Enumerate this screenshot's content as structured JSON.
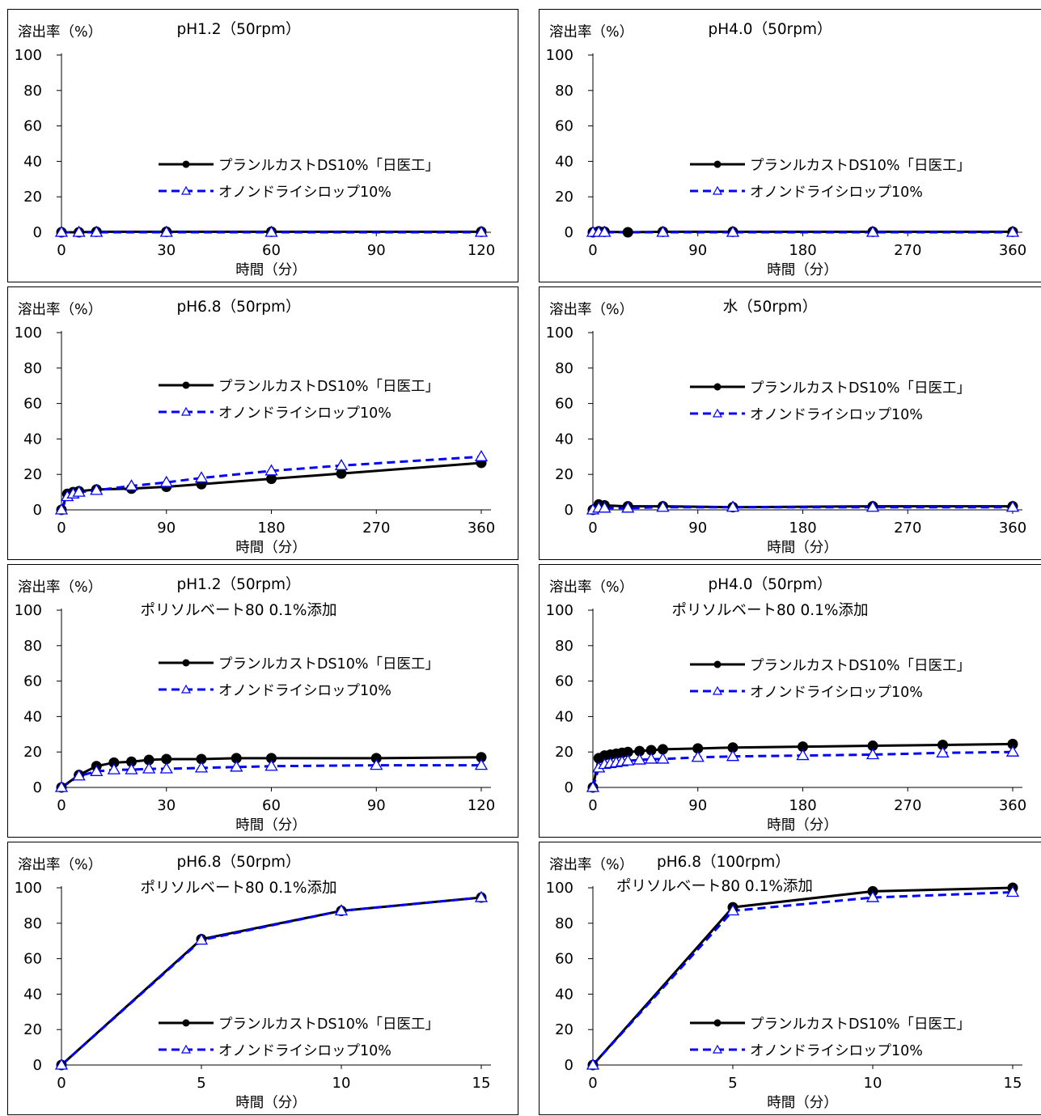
{
  "legend": {
    "series1": "プランルカストDS10%「日医工」",
    "series2": "オノンドライシロップ10%"
  },
  "colors": {
    "series1": "#000000",
    "series2": "#0000ff",
    "marker2_stroke": "#0000ff",
    "marker2_fill": "#ffffff"
  },
  "chart_data": [
    {
      "type": "line",
      "title": "pH1.2（50rpm）",
      "subtitle": "",
      "ylabel": "溶出率（%）",
      "xlabel": "時間（分）",
      "xlim": [
        0,
        120
      ],
      "xticks": [
        0,
        30,
        60,
        90,
        120
      ],
      "ylim": [
        0,
        100
      ],
      "yticks": [
        0,
        20,
        40,
        60,
        80,
        100
      ],
      "legend_position": "middle-right",
      "series": [
        {
          "name": "プランルカストDS10%「日医工」",
          "x": [
            0,
            5,
            10,
            30,
            60,
            120
          ],
          "values": [
            0,
            0,
            0.3,
            0.3,
            0.3,
            0.3
          ]
        },
        {
          "name": "オノンドライシロップ10%",
          "x": [
            0,
            5,
            10,
            30,
            60,
            120
          ],
          "values": [
            0,
            0,
            0,
            0,
            0,
            0
          ]
        }
      ]
    },
    {
      "type": "line",
      "title": "pH4.0（50rpm）",
      "subtitle": "",
      "ylabel": "溶出率（%）",
      "xlabel": "時間（分）",
      "xlim": [
        0,
        360
      ],
      "xticks": [
        0,
        90,
        180,
        270,
        360
      ],
      "ylim": [
        0,
        100
      ],
      "yticks": [
        0,
        20,
        40,
        60,
        80,
        100
      ],
      "legend_position": "middle-right",
      "series": [
        {
          "name": "プランルカストDS10%「日医工」",
          "x": [
            0,
            5,
            10,
            30,
            60,
            120,
            240,
            360
          ],
          "values": [
            0,
            0.5,
            0.3,
            0,
            0.3,
            0.3,
            0.3,
            0.3
          ]
        },
        {
          "name": "オノンドライシロップ10%",
          "x": [
            0,
            5,
            10,
            60,
            120,
            240,
            360
          ],
          "values": [
            0,
            0,
            0,
            0,
            0,
            0,
            0
          ]
        }
      ]
    },
    {
      "type": "line",
      "title": "pH6.8（50rpm）",
      "subtitle": "",
      "ylabel": "溶出率（%）",
      "xlabel": "時間（分）",
      "xlim": [
        0,
        360
      ],
      "xticks": [
        0,
        90,
        180,
        270,
        360
      ],
      "ylim": [
        0,
        100
      ],
      "yticks": [
        0,
        20,
        40,
        60,
        80,
        100
      ],
      "legend_position": "middle-right",
      "series": [
        {
          "name": "プランルカストDS10%「日医工」",
          "x": [
            0,
            5,
            10,
            15,
            30,
            60,
            90,
            120,
            180,
            240,
            360
          ],
          "values": [
            0,
            9,
            10,
            10.5,
            11.5,
            12,
            13,
            14.5,
            17.5,
            20.5,
            26.5
          ]
        },
        {
          "name": "オノンドライシロップ10%",
          "x": [
            0,
            5,
            10,
            15,
            30,
            60,
            90,
            120,
            180,
            240,
            360
          ],
          "values": [
            0,
            7.5,
            9,
            10,
            11,
            13.5,
            15.5,
            18,
            22,
            25,
            30
          ]
        }
      ]
    },
    {
      "type": "line",
      "title": "水（50rpm）",
      "subtitle": "",
      "ylabel": "溶出率（%）",
      "xlabel": "時間（分）",
      "xlim": [
        0,
        360
      ],
      "xticks": [
        0,
        90,
        180,
        270,
        360
      ],
      "ylim": [
        0,
        100
      ],
      "yticks": [
        0,
        20,
        40,
        60,
        80,
        100
      ],
      "legend_position": "middle-right",
      "series": [
        {
          "name": "プランルカストDS10%「日医工」",
          "x": [
            0,
            5,
            10,
            30,
            60,
            120,
            240,
            360
          ],
          "values": [
            0,
            3,
            2.5,
            2,
            2,
            1.5,
            2,
            2
          ]
        },
        {
          "name": "オノンドライシロップ10%",
          "x": [
            0,
            5,
            10,
            30,
            60,
            120,
            240,
            360
          ],
          "values": [
            0,
            1,
            1,
            1,
            1.5,
            1.5,
            1.5,
            1.5
          ]
        }
      ]
    },
    {
      "type": "line",
      "title": "pH1.2（50rpm）",
      "subtitle": "ポリソルベート80 0.1%添加",
      "ylabel": "溶出率（%）",
      "xlabel": "時間（分）",
      "xlim": [
        0,
        120
      ],
      "xticks": [
        0,
        30,
        60,
        90,
        120
      ],
      "ylim": [
        0,
        100
      ],
      "yticks": [
        0,
        20,
        40,
        60,
        80,
        100
      ],
      "legend_position": "middle-right",
      "series": [
        {
          "name": "プランルカストDS10%「日医工」",
          "x": [
            0,
            5,
            10,
            15,
            20,
            25,
            30,
            40,
            50,
            60,
            90,
            120
          ],
          "values": [
            0,
            7,
            12,
            14,
            14.5,
            15.5,
            16,
            16,
            16.5,
            16.5,
            16.5,
            17
          ]
        },
        {
          "name": "オノンドライシロップ10%",
          "x": [
            0,
            5,
            10,
            15,
            20,
            25,
            30,
            40,
            50,
            60,
            90,
            120
          ],
          "values": [
            0,
            6.5,
            9,
            10,
            10,
            10.5,
            10.5,
            11,
            11.5,
            12,
            12.5,
            12.5
          ]
        }
      ]
    },
    {
      "type": "line",
      "title": "pH4.0（50rpm）",
      "subtitle": "ポリソルベート80 0.1%添加",
      "ylabel": "溶出率（%）",
      "xlabel": "時間（分）",
      "xlim": [
        0,
        360
      ],
      "xticks": [
        0,
        90,
        180,
        270,
        360
      ],
      "ylim": [
        0,
        100
      ],
      "yticks": [
        0,
        20,
        40,
        60,
        80,
        100
      ],
      "legend_position": "middle-right",
      "series": [
        {
          "name": "プランルカストDS10%「日医工」",
          "x": [
            0,
            5,
            10,
            15,
            20,
            25,
            30,
            40,
            50,
            60,
            90,
            120,
            180,
            240,
            300,
            360
          ],
          "values": [
            0,
            16.5,
            18,
            18.5,
            19,
            19.5,
            20,
            20.5,
            21,
            21.5,
            22,
            22.5,
            23,
            23.5,
            24,
            24.5
          ]
        },
        {
          "name": "オノンドライシロップ10%",
          "x": [
            0,
            5,
            10,
            15,
            20,
            25,
            30,
            40,
            50,
            60,
            90,
            120,
            180,
            240,
            300,
            360
          ],
          "values": [
            0,
            11,
            13,
            13.5,
            14,
            14.5,
            15,
            15.5,
            16,
            16,
            17,
            17.5,
            18,
            18.5,
            19.5,
            20
          ]
        }
      ]
    },
    {
      "type": "line",
      "title": "pH6.8（50rpm）",
      "subtitle": "ポリソルベート80 0.1%添加",
      "ylabel": "溶出率（%）",
      "xlabel": "時間（分）",
      "xlim": [
        0,
        15
      ],
      "xticks": [
        0,
        5,
        10,
        15
      ],
      "ylim": [
        0,
        100
      ],
      "yticks": [
        0,
        20,
        40,
        60,
        80,
        100
      ],
      "legend_position": "bottom-right",
      "series": [
        {
          "name": "プランルカストDS10%「日医工」",
          "x": [
            0,
            5,
            10,
            15
          ],
          "values": [
            0,
            71,
            87,
            94.5
          ]
        },
        {
          "name": "オノンドライシロップ10%",
          "x": [
            0,
            5,
            10,
            15
          ],
          "values": [
            0,
            70.5,
            87,
            94.5
          ]
        }
      ]
    },
    {
      "type": "line",
      "title": "pH6.8（100rpm）",
      "subtitle": "ポリソルベート80 0.1%添加",
      "ylabel": "溶出率（%）",
      "xlabel": "時間（分）",
      "xlim": [
        0,
        15
      ],
      "xticks": [
        0,
        5,
        10,
        15
      ],
      "ylim": [
        0,
        100
      ],
      "yticks": [
        0,
        20,
        40,
        60,
        80,
        100
      ],
      "legend_position": "bottom-right",
      "series": [
        {
          "name": "プランルカストDS10%「日医工」",
          "x": [
            0,
            5,
            10,
            15
          ],
          "values": [
            0,
            89,
            98,
            100
          ]
        },
        {
          "name": "オノンドライシロップ10%",
          "x": [
            0,
            5,
            10,
            15
          ],
          "values": [
            0,
            87,
            94.5,
            97.5
          ]
        }
      ]
    }
  ]
}
